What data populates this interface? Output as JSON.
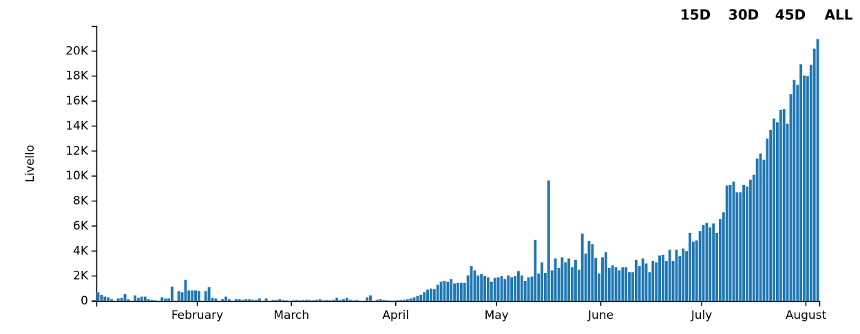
{
  "controls": [
    "15D",
    "30D",
    "45D",
    "ALL"
  ],
  "chart_data": {
    "type": "bar",
    "y_label": "Livello",
    "color": "#1f77b4",
    "categories": [
      null,
      null,
      null,
      null,
      null,
      null,
      null,
      null,
      null,
      null,
      null,
      null,
      null,
      null,
      null,
      null,
      null,
      null,
      null,
      null,
      null,
      null,
      null,
      null,
      null,
      null,
      null,
      null,
      null,
      null,
      "February",
      null,
      null,
      null,
      null,
      null,
      null,
      null,
      null,
      null,
      null,
      null,
      null,
      null,
      null,
      null,
      null,
      null,
      null,
      null,
      null,
      null,
      null,
      null,
      null,
      null,
      null,
      null,
      "March",
      null,
      null,
      null,
      null,
      null,
      null,
      null,
      null,
      null,
      null,
      null,
      null,
      null,
      null,
      null,
      null,
      null,
      null,
      null,
      null,
      null,
      null,
      null,
      null,
      null,
      null,
      null,
      null,
      null,
      null,
      "April",
      null,
      null,
      null,
      null,
      null,
      null,
      null,
      null,
      null,
      null,
      null,
      null,
      null,
      null,
      null,
      null,
      null,
      null,
      null,
      null,
      null,
      null,
      null,
      null,
      null,
      null,
      null,
      null,
      null,
      "May",
      null,
      null,
      null,
      null,
      null,
      null,
      null,
      null,
      null,
      null,
      null,
      null,
      null,
      null,
      null,
      null,
      null,
      null,
      null,
      null,
      null,
      null,
      null,
      null,
      null,
      null,
      null,
      null,
      null,
      null,
      "June",
      null,
      null,
      null,
      null,
      null,
      null,
      null,
      null,
      null,
      null,
      null,
      null,
      null,
      null,
      null,
      null,
      null,
      null,
      null,
      null,
      null,
      null,
      null,
      null,
      null,
      null,
      null,
      null,
      null,
      "July",
      null,
      null,
      null,
      null,
      null,
      null,
      null,
      null,
      null,
      null,
      null,
      null,
      null,
      null,
      null,
      null,
      null,
      null,
      null,
      null,
      null,
      null,
      null,
      null,
      null,
      null,
      null,
      null,
      null,
      null,
      "August",
      null,
      null,
      null
    ],
    "values": [
      700,
      500,
      350,
      300,
      150,
      0,
      200,
      250,
      550,
      150,
      0,
      450,
      250,
      350,
      350,
      150,
      100,
      50,
      0,
      300,
      200,
      200,
      1150,
      0,
      800,
      700,
      1700,
      850,
      850,
      850,
      800,
      0,
      800,
      1100,
      250,
      200,
      0,
      150,
      350,
      150,
      0,
      150,
      150,
      100,
      150,
      150,
      100,
      100,
      200,
      0,
      200,
      0,
      80,
      80,
      150,
      80,
      50,
      0,
      50,
      80,
      50,
      80,
      100,
      80,
      50,
      100,
      150,
      50,
      80,
      50,
      80,
      250,
      80,
      150,
      250,
      100,
      50,
      80,
      0,
      0,
      300,
      450,
      0,
      100,
      150,
      80,
      50,
      30,
      30,
      50,
      80,
      100,
      150,
      200,
      300,
      400,
      500,
      700,
      900,
      1000,
      950,
      1300,
      1550,
      1600,
      1550,
      1750,
      1400,
      1450,
      1450,
      1450,
      2050,
      2800,
      2450,
      2050,
      2150,
      2000,
      1900,
      1550,
      1850,
      1900,
      2000,
      1750,
      2050,
      1900,
      2000,
      2400,
      2050,
      1600,
      1900,
      1950,
      4900,
      2200,
      3100,
      2250,
      9650,
      2450,
      3400,
      2650,
      3500,
      3100,
      3400,
      2700,
      3300,
      2500,
      5400,
      3800,
      4800,
      4550,
      3450,
      2200,
      3500,
      3900,
      2650,
      2850,
      2700,
      2450,
      2700,
      2700,
      2300,
      2300,
      3300,
      2800,
      3400,
      3000,
      2300,
      3200,
      3100,
      3650,
      3700,
      3200,
      4100,
      3200,
      4100,
      3600,
      4200,
      4000,
      5450,
      4750,
      4850,
      5600,
      6100,
      6250,
      5900,
      6200,
      5450,
      6550,
      7100,
      9250,
      9300,
      9550,
      8700,
      8700,
      9300,
      9150,
      9700,
      10100,
      11400,
      11800,
      11300,
      13000,
      13700,
      14600,
      14300,
      15300,
      15350,
      14200,
      16550,
      17700,
      17300,
      18950,
      18050,
      18000,
      18900,
      20200,
      20950
    ],
    "ylim": [
      0,
      22000
    ],
    "yticks": [
      0,
      {
        "value": 2000,
        "label": "2K"
      },
      {
        "value": 4000,
        "label": "4K"
      },
      {
        "value": 6000,
        "label": "6K"
      },
      {
        "value": 8000,
        "label": "8K"
      },
      {
        "value": 10000,
        "label": "10K"
      },
      {
        "value": 12000,
        "label": "12K"
      },
      {
        "value": 14000,
        "label": "14K"
      },
      {
        "value": 16000,
        "label": "16K"
      },
      {
        "value": 18000,
        "label": "18K"
      },
      {
        "value": 20000,
        "label": "20K"
      }
    ]
  }
}
